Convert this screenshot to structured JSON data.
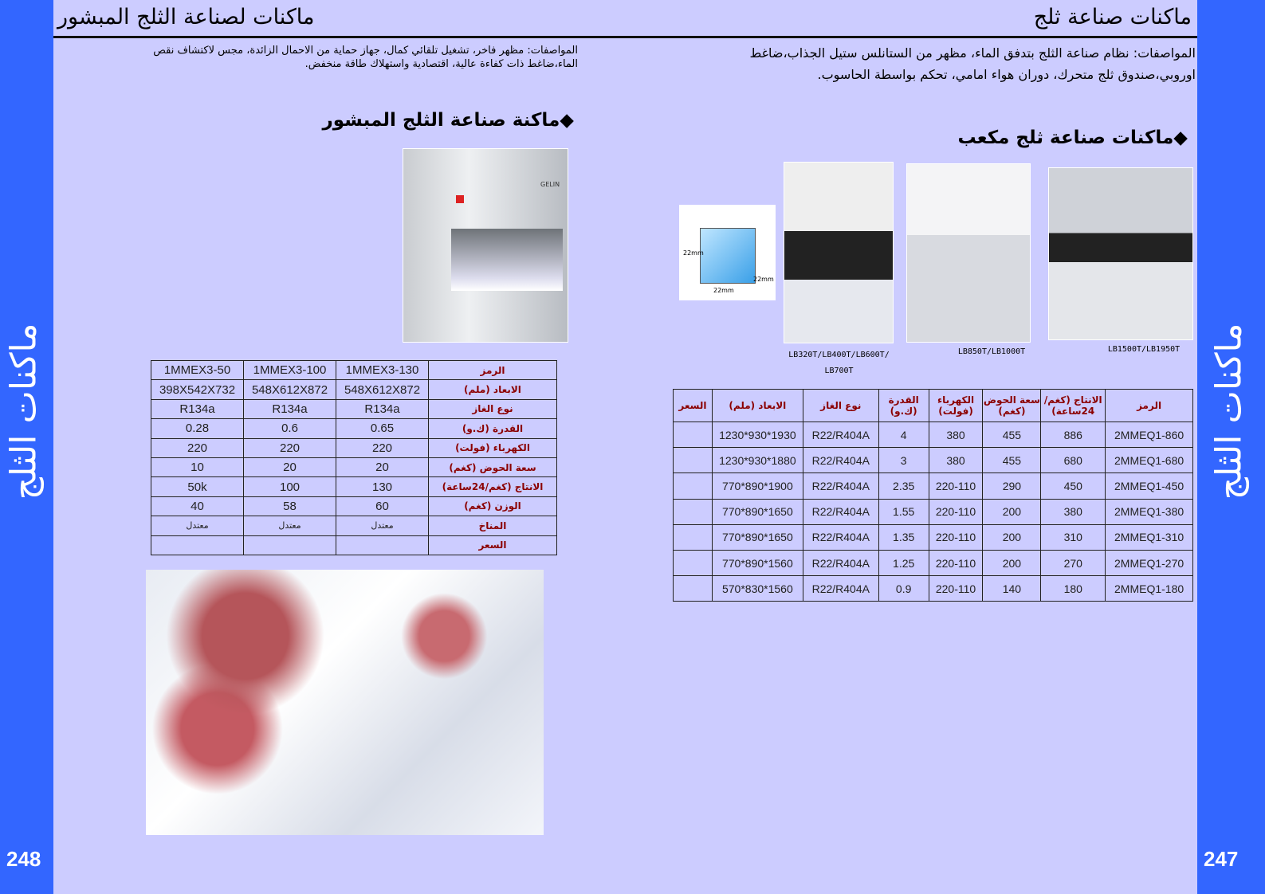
{
  "side_label": "ماكنات الثلج",
  "left_page": {
    "page_number": "248",
    "title": "ماكنات لصناعة الثلج المبشور",
    "specs": "المواصفات: مظهر فاخر، تشغيل تلقائي كمال، جهاز حماية من الاحمال الزائدة، مجس لاكتشاف نقص الماء،ضاغط ذات كفاءة عالية، اقتصادية واستهلاك طاقة منخفض.",
    "subtitle": "◆ماكنة صناعة الثلج المبشور",
    "machine_brand": "GELIN",
    "table": [
      [
        "الرمز",
        "1MMEX3-130",
        "1MMEX3-100",
        "1MMEX3-50"
      ],
      [
        "الابعاد (ملم)",
        "548X612X872",
        "548X612X872",
        "398X542X732"
      ],
      [
        "نوع الغاز",
        "R134a",
        "R134a",
        "R134a"
      ],
      [
        "القدرة (ك.و)",
        "0.65",
        "0.6",
        "0.28"
      ],
      [
        "الكهرباء (فولت)",
        "220",
        "220",
        "220"
      ],
      [
        "سعة الحوض (كغم)",
        "20",
        "20",
        "10"
      ],
      [
        "الانتاج (كغم/24ساعة)",
        "130",
        "100",
        "50k"
      ],
      [
        "الوزن (كغم)",
        "60",
        "58",
        "40"
      ],
      [
        "المناخ",
        "معتدل",
        "معتدل",
        "معتدل"
      ],
      [
        "السعر",
        "",
        "",
        ""
      ]
    ]
  },
  "right_page": {
    "page_number": "247",
    "title": "ماكنات صناعة ثلج",
    "specs": "المواصفات: نظام صناعة الثلج بتدفق الماء، مظهر من الستانلس ستيل الجذاب،ضاغط اوروبي،صندوق ثلج متحرك، دوران هواء امامي، تحكم بواسطة الحاسوب.",
    "subtitle": "◆ماكنات صناعة ثلج مكعب",
    "cube_dims": [
      "22mm",
      "22mm",
      "22mm"
    ],
    "captions": [
      "LB320T/LB400T/LB600T/ LB700T",
      "LB850T/LB1000T",
      "LB1500T/LB1950T"
    ],
    "headers": [
      "الرمز",
      "الانتاج (كغم/ 24ساعة)",
      "سعة الحوض (كغم)",
      "الكهرباء (فولت)",
      "القدرة (ك.و)",
      "نوع الغاز",
      "الابعاد (ملم)",
      "السعر"
    ],
    "rows": [
      [
        "2MMEQ1-860",
        "886",
        "455",
        "380",
        "4",
        "R22/R404A",
        "1230*930*1930",
        ""
      ],
      [
        "2MMEQ1-680",
        "680",
        "455",
        "380",
        "3",
        "R22/R404A",
        "1230*930*1880",
        ""
      ],
      [
        "2MMEQ1-450",
        "450",
        "290",
        "220-110",
        "2.35",
        "R22/R404A",
        "770*890*1900",
        ""
      ],
      [
        "2MMEQ1-380",
        "380",
        "200",
        "220-110",
        "1.55",
        "R22/R404A",
        "770*890*1650",
        ""
      ],
      [
        "2MMEQ1-310",
        "310",
        "200",
        "220-110",
        "1.35",
        "R22/R404A",
        "770*890*1650",
        ""
      ],
      [
        "2MMEQ1-270",
        "270",
        "200",
        "220-110",
        "1.25",
        "R22/R404A",
        "770*890*1560",
        ""
      ],
      [
        "2MMEQ1-180",
        "180",
        "140",
        "220-110",
        "0.9",
        "R22/R404A",
        "570*830*1560",
        ""
      ]
    ]
  }
}
